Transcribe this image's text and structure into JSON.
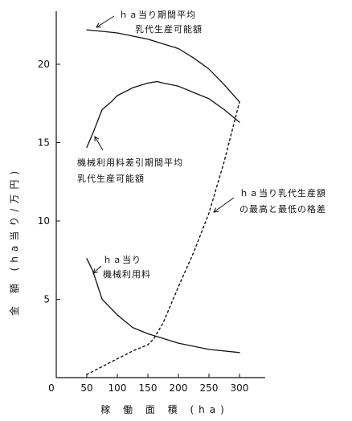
{
  "chart_data": {
    "type": "line",
    "xlabel": "稼 働 面 積 (ha)",
    "ylabel": "金 額 (ha当り/万円)",
    "xlim": [
      0,
      330
    ],
    "ylim": [
      0,
      23
    ],
    "x_ticks": [
      0,
      50,
      100,
      150,
      200,
      250,
      300
    ],
    "y_ticks": [
      5,
      10,
      15,
      20
    ],
    "grid": false,
    "legend": "none",
    "series": [
      {
        "key": "period-avg",
        "line_style": "solid",
        "x": [
          50,
          75,
          100,
          125,
          150,
          175,
          200,
          225,
          250,
          275,
          300
        ],
        "y": [
          22.2,
          22.1,
          22.0,
          21.8,
          21.6,
          21.3,
          21.0,
          20.4,
          19.7,
          18.7,
          17.6
        ]
      },
      {
        "key": "after-machine-cost",
        "line_style": "solid",
        "x": [
          50,
          60,
          75,
          90,
          100,
          125,
          150,
          165,
          175,
          200,
          225,
          250,
          275,
          300
        ],
        "y": [
          14.7,
          15.6,
          17.1,
          17.6,
          18.0,
          18.5,
          18.8,
          18.9,
          18.8,
          18.6,
          18.2,
          17.8,
          17.1,
          16.3
        ]
      },
      {
        "key": "machine-cost",
        "line_style": "solid",
        "x": [
          50,
          60,
          75,
          100,
          125,
          150,
          175,
          200,
          250,
          300
        ],
        "y": [
          7.6,
          6.8,
          5.0,
          4.0,
          3.2,
          2.8,
          2.5,
          2.2,
          1.8,
          1.6
        ]
      },
      {
        "key": "max-min-gap",
        "line_style": "dashed",
        "x": [
          50,
          75,
          100,
          125,
          150,
          160,
          175,
          200,
          225,
          250,
          275,
          300
        ],
        "y": [
          0.2,
          0.7,
          1.2,
          1.7,
          2.1,
          2.5,
          3.5,
          5.8,
          8.0,
          10.5,
          13.8,
          17.6
        ]
      }
    ],
    "annotations": [
      {
        "key": "period-avg",
        "lines": [
          "ｈａ当り期間平均",
          "乳代生産可能額"
        ],
        "target": {
          "x": 50,
          "y": 21.9
        }
      },
      {
        "key": "after-machine-cost",
        "lines": [
          "機械利用料差引期間平均",
          "乳代生産可能額"
        ],
        "target": {
          "x": 57,
          "y": 15.6
        }
      },
      {
        "key": "max-min-gap",
        "lines": [
          "ｈａ当り乳代生産額",
          "の最高と最低の格差"
        ],
        "target": {
          "x": 260,
          "y": 10.7
        }
      },
      {
        "key": "machine-cost",
        "lines": [
          "ｈａ当り",
          "機械利用料"
        ],
        "target": {
          "x": 55,
          "y": 7.0
        }
      }
    ]
  }
}
